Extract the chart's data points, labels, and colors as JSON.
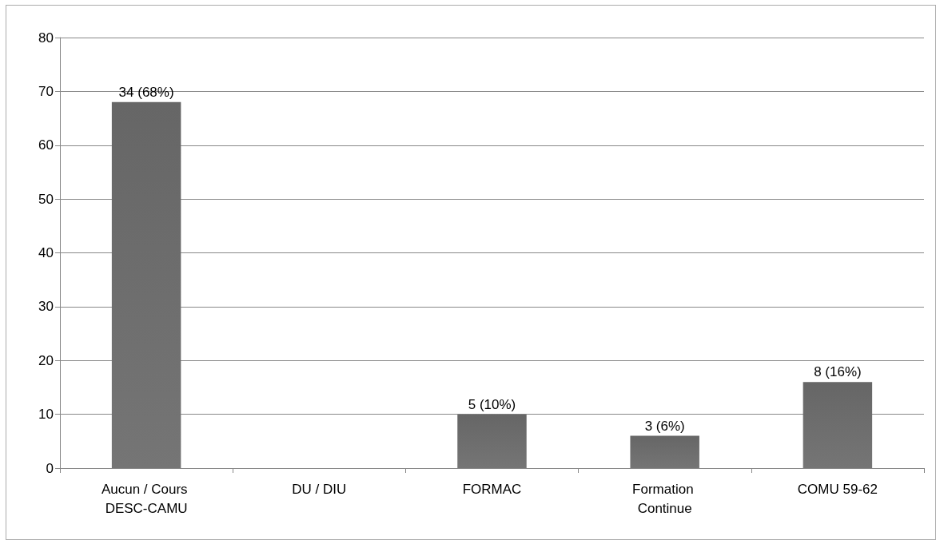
{
  "chart_data": {
    "type": "bar",
    "categories": [
      "Aucun / Cours DESC-CAMU",
      "DU / DIU",
      "FORMAC",
      "Formation Continue",
      "COMU 59-62"
    ],
    "values": [
      68,
      0,
      10,
      6,
      16
    ],
    "value_labels": [
      "34 (68%)",
      null,
      "5 (10%)",
      "3 (6%)",
      "8 (16%)"
    ],
    "color": "#666666",
    "ylim": [
      0,
      80
    ],
    "yticks": [
      0,
      10,
      20,
      30,
      40,
      50,
      60,
      70,
      80
    ],
    "grid": "y"
  }
}
